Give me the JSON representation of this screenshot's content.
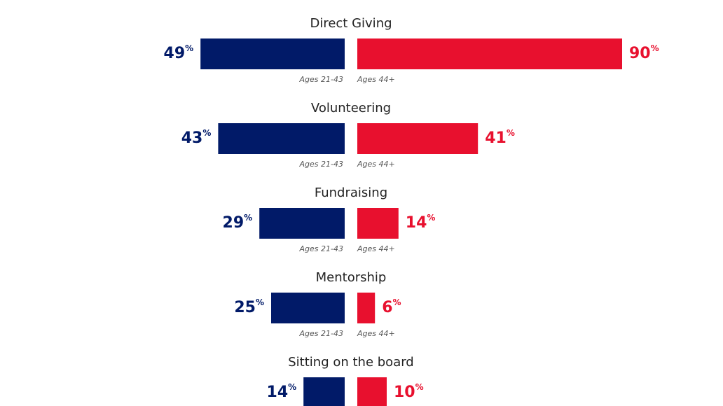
{
  "chart_data": {
    "type": "bar",
    "orientation": "horizontal-diverging",
    "categories": [
      "Direct Giving",
      "Volunteering",
      "Fundraising",
      "Mentorship",
      "Sitting on the board"
    ],
    "series": [
      {
        "name": "Ages 21-43",
        "label": "Ages 21-43",
        "values": [
          49,
          43,
          29,
          25,
          14
        ],
        "color": "#011A68"
      },
      {
        "name": "Ages 44+",
        "label": "Ages 44+",
        "values": [
          90,
          41,
          14,
          6,
          10
        ],
        "color": "#E8102E"
      }
    ],
    "unit": "%",
    "xlim": [
      0,
      90
    ],
    "legend": "none"
  }
}
